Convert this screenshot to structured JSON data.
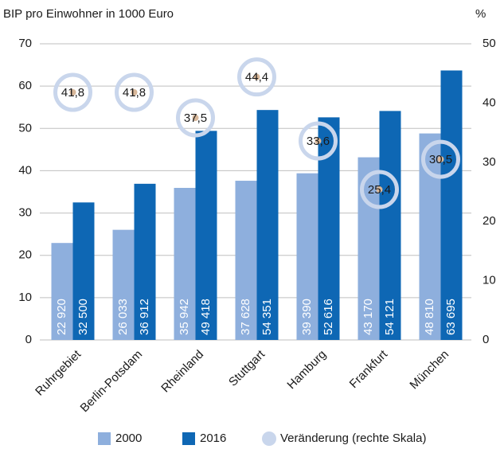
{
  "chart_data": {
    "type": "bar",
    "title": "BIP pro Einwohner in 1000 Euro",
    "y2_title": "%",
    "categories": [
      "Ruhrgebiet",
      "Berlin-Potsdam",
      "Rheinland",
      "Stuttgart",
      "Hamburg",
      "Frankfurt",
      "München"
    ],
    "series": [
      {
        "name": "2000",
        "color": "#8eafdd",
        "values": [
          22.92,
          26.033,
          35.942,
          37.628,
          39.39,
          43.17,
          48.81
        ],
        "value_labels": [
          "22 920",
          "26 033",
          "35 942",
          "37 628",
          "39 390",
          "43 170",
          "48 810"
        ]
      },
      {
        "name": "2016",
        "color": "#0e67b4",
        "values": [
          32.5,
          36.912,
          49.418,
          54.351,
          52.616,
          54.121,
          63.695
        ],
        "value_labels": [
          "32 500",
          "36 912",
          "49 418",
          "54 351",
          "52 616",
          "54 121",
          "63 695"
        ]
      },
      {
        "name": "Veränderung (rechte Skala)",
        "type": "scatter",
        "axis": "y2",
        "color": "#c9d6ec",
        "values": [
          41.8,
          41.8,
          37.5,
          44.4,
          33.6,
          25.4,
          30.5
        ],
        "value_labels": [
          "41,8",
          "41,8",
          "37,5",
          "44,4",
          "33,6",
          "25,4",
          "30,5"
        ]
      }
    ],
    "ylim": [
      0,
      70
    ],
    "yticks": [
      0,
      10,
      20,
      30,
      40,
      50,
      60,
      70
    ],
    "y2lim": [
      0,
      50
    ],
    "y2ticks": [
      0,
      10,
      20,
      30,
      40,
      50
    ],
    "grid": true
  }
}
